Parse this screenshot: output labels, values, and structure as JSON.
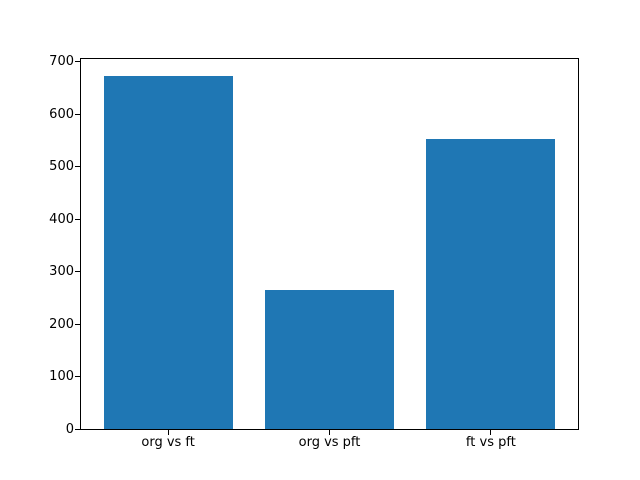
{
  "chart_data": {
    "type": "bar",
    "categories": [
      "org vs ft",
      "org vs pft",
      "ft vs pft"
    ],
    "values": [
      672,
      265,
      553
    ],
    "title": "",
    "xlabel": "",
    "ylabel": "",
    "ylim": [
      0,
      705
    ],
    "yticks": [
      0,
      100,
      200,
      300,
      400,
      500,
      600,
      700
    ],
    "bar_width_fraction": 0.8,
    "x_margin_fraction": 0.05,
    "grid": false,
    "legend": null,
    "bar_color": "#1f77b4",
    "spine_color": "#000000",
    "background_color": "#ffffff"
  }
}
